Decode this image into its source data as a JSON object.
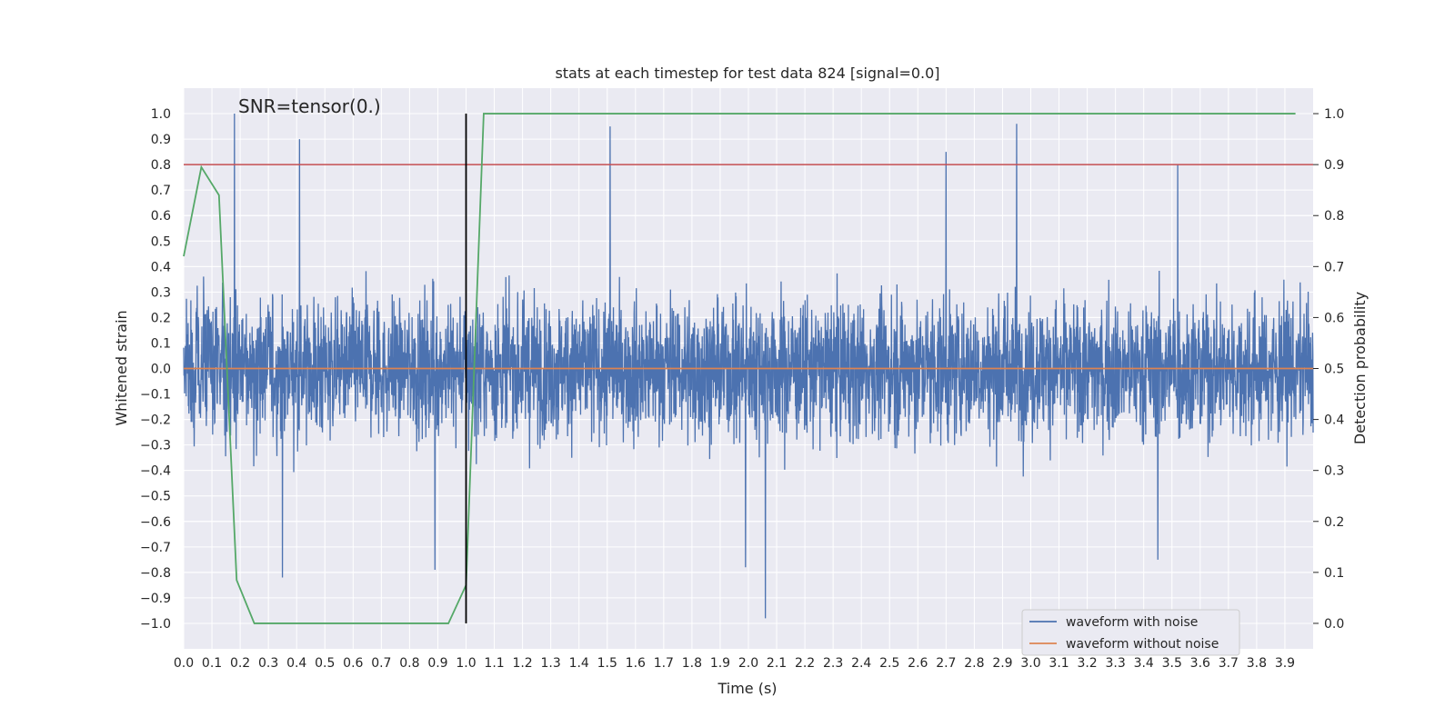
{
  "chart_data": {
    "type": "line",
    "title": "stats at each timestep for test data 824 [signal=0.0]",
    "xlabel": "Time (s)",
    "ylabel": "Whitened strain",
    "y2label": "Detection probability",
    "xlim": [
      0.0,
      4.0
    ],
    "ylim": [
      -1.1,
      1.1
    ],
    "y2lim": [
      -0.05,
      1.05
    ],
    "grid": true,
    "annotation": "SNR=tensor(0.)",
    "xticks": [
      "0.0",
      "0.1",
      "0.2",
      "0.3",
      "0.4",
      "0.5",
      "0.6",
      "0.7",
      "0.8",
      "0.9",
      "1.0",
      "1.1",
      "1.2",
      "1.3",
      "1.4",
      "1.5",
      "1.6",
      "1.7",
      "1.8",
      "1.9",
      "2.0",
      "2.1",
      "2.2",
      "2.3",
      "2.4",
      "2.5",
      "2.6",
      "2.7",
      "2.8",
      "2.9",
      "3.0",
      "3.1",
      "3.2",
      "3.3",
      "3.4",
      "3.5",
      "3.6",
      "3.7",
      "3.8",
      "3.9"
    ],
    "yticks": [
      "−1.0",
      "−0.9",
      "−0.8",
      "−0.7",
      "−0.6",
      "−0.5",
      "−0.4",
      "−0.3",
      "−0.2",
      "−0.1",
      "0.0",
      "0.1",
      "0.2",
      "0.3",
      "0.4",
      "0.5",
      "0.6",
      "0.7",
      "0.8",
      "0.9",
      "1.0"
    ],
    "y2ticks": [
      "0.0",
      "0.1",
      "0.2",
      "0.3",
      "0.4",
      "0.5",
      "0.6",
      "0.7",
      "0.8",
      "0.9",
      "1.0"
    ],
    "threshold": {
      "value": 0.8,
      "axis": "y2_left",
      "color": "#c44e52"
    },
    "marker_line": {
      "x": 1.0,
      "from": -1.0,
      "to": 1.0,
      "color": "#000000"
    },
    "legend": {
      "position": "lower-right",
      "entries": [
        {
          "label": "waveform with noise",
          "color": "#4c72b0"
        },
        {
          "label": "waveform without noise",
          "color": "#dd8452"
        }
      ]
    },
    "series": [
      {
        "name": "waveform with noise",
        "color": "#4c72b0",
        "kind": "noise",
        "x_range": [
          0.0,
          4.0
        ],
        "amplitude_typical": 0.45,
        "peaks": [
          {
            "x": 0.18,
            "y": 1.0
          },
          {
            "x": 0.41,
            "y": 0.9
          },
          {
            "x": 1.51,
            "y": 0.95
          },
          {
            "x": 2.7,
            "y": 0.85
          },
          {
            "x": 2.95,
            "y": 0.96
          },
          {
            "x": 3.52,
            "y": 0.8
          },
          {
            "x": 0.35,
            "y": -0.82
          },
          {
            "x": 0.89,
            "y": -0.79
          },
          {
            "x": 2.06,
            "y": -0.98
          },
          {
            "x": 1.99,
            "y": -0.78
          },
          {
            "x": 3.45,
            "y": -0.75
          }
        ]
      },
      {
        "name": "waveform without noise",
        "color": "#dd8452",
        "x": [
          0.0,
          4.0
        ],
        "y": [
          0.0,
          0.0
        ]
      },
      {
        "name": "Detection probability",
        "color": "#55a868",
        "axis": "y2",
        "x": [
          0.0,
          0.0625,
          0.125,
          0.1875,
          0.25,
          0.3125,
          0.375,
          0.4375,
          0.5,
          0.5625,
          0.625,
          0.6875,
          0.75,
          0.8125,
          0.875,
          0.9375,
          1.0,
          1.0625,
          1.125,
          1.1875,
          1.25,
          1.5,
          2.0,
          2.5,
          3.0,
          3.5,
          3.9375
        ],
        "y": [
          0.72,
          0.895,
          0.84,
          0.085,
          0.0,
          0.0,
          0.0,
          0.0,
          0.0,
          0.0,
          0.0,
          0.0,
          0.0,
          0.0,
          0.0,
          0.0,
          0.075,
          1.0,
          1.0,
          1.0,
          1.0,
          1.0,
          1.0,
          1.0,
          1.0,
          1.0,
          1.0
        ]
      }
    ]
  }
}
